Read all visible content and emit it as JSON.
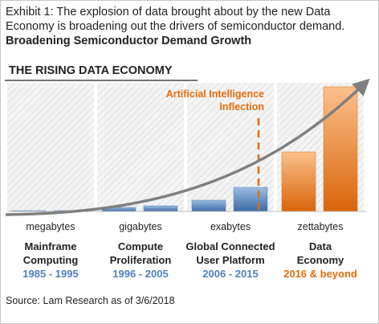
{
  "header": {
    "title": "Exhibit 1: The explosion of data brought about by the new Data Economy is broadening out the drivers of semiconductor demand.",
    "subtitle": "Broadening Semiconductor Demand Growth"
  },
  "chart_data": {
    "type": "bar",
    "title": "THE RISING DATA ECONOMY",
    "annotation": "Artificial Intelligence\nInflection",
    "categories": [
      "megabytes",
      "gigabytes",
      "exabytes",
      "zettabytes"
    ],
    "eras": [
      {
        "name": "Mainframe\nComputing",
        "years": "1985 - 1995"
      },
      {
        "name": "Compute\nProliferation",
        "years": "1996 - 2005"
      },
      {
        "name": "Global Connected\nUser Platform",
        "years": "2006 - 2015"
      },
      {
        "name": "Data\nEconomy",
        "years": "2016 & beyond"
      }
    ],
    "series": [
      {
        "values": [
          1,
          5,
          14,
          74
        ]
      },
      {
        "values": [
          1,
          7,
          30,
          155
        ]
      }
    ],
    "colors": [
      "#4f81bd",
      "#4f81bd",
      "#4f81bd",
      "#e46c0a"
    ],
    "ylim": [
      0,
      160
    ]
  },
  "footer": {
    "source": "Source: Lam Research as of 3/6/2018"
  }
}
